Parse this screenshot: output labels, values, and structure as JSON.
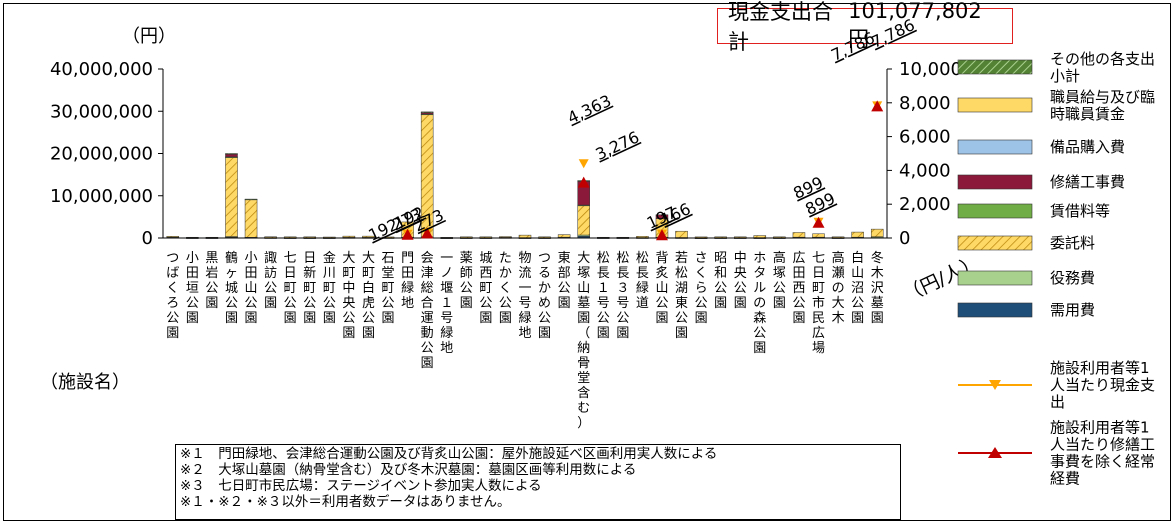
{
  "total": {
    "label": "現金支出合計",
    "value": "101,077,802 円"
  },
  "unit_left": "（円）",
  "unit_right": "（円/人）",
  "facility_label": "（施設名）",
  "notes": [
    "※１　門田緑地、会津総合運動公園及び背炙山公園：屋外施設延べ区画利用実人数による",
    "※２　大塚山墓園（納骨堂含む）及び冬木沢墓園：墓園区画等利用数による",
    "※３　七日町市民広場：ステージイベント参加実人数による",
    "※１・※２・※３以外＝利用者数データはありません。"
  ],
  "chart_data": {
    "type": "bar",
    "stacked": true,
    "y_left": {
      "min": 0,
      "max": 40000000,
      "ticks": [
        "0",
        "10,000,000",
        "20,000,000",
        "30,000,000",
        "40,000,000"
      ]
    },
    "y_right": {
      "min": 0,
      "max": 10000,
      "ticks": [
        "0",
        "2,000",
        "4,000",
        "6,000",
        "8,000",
        "10,000"
      ]
    },
    "categories": [
      "つばくろ公園",
      "小田垣公園",
      "黒岩公園",
      "鶴ヶ城公園",
      "小田山公園",
      "諏訪公園",
      "七日町公園",
      "日新町公園",
      "金川町公園",
      "大町中央公園",
      "大町白虎公園",
      "石堂町公園",
      "門田緑地",
      "会津総合運動公園",
      "一ノ堰１号緑地",
      "薬師公園",
      "城西町公園",
      "たかく公園",
      "物流一号緑地",
      "つるかめ公園",
      "東部公園",
      "大塚山墓園（納骨堂含む）",
      "松長１号公園",
      "松長３号公園",
      "松長緑道",
      "背炙山公園",
      "若松湖東公園",
      "さくら公園",
      "昭和公園",
      "中央公園",
      "ホタルの森公園",
      "高塚公園",
      "広田西公園",
      "七日町市民広場",
      "高瀬の大木",
      "白山沼公園",
      "冬木沢墓園"
    ],
    "series": [
      {
        "name": "需用費",
        "color": "#1f4e79",
        "values": [
          150000,
          60000,
          60000,
          250000,
          120000,
          80000,
          60000,
          60000,
          60000,
          100000,
          100000,
          80000,
          150000,
          200000,
          40000,
          60000,
          60000,
          100000,
          60000,
          60000,
          150000,
          400000,
          60000,
          60000,
          80000,
          150000,
          80000,
          40000,
          60000,
          60000,
          60000,
          60000,
          150000,
          150000,
          60000,
          150000,
          200000
        ]
      },
      {
        "name": "役務費",
        "color": "#a9d18e",
        "values": [
          50000,
          20000,
          20000,
          100000,
          40000,
          20000,
          20000,
          20000,
          20000,
          40000,
          40000,
          20000,
          50000,
          100000,
          20000,
          20000,
          20000,
          40000,
          20000,
          20000,
          50000,
          300000,
          20000,
          20000,
          20000,
          50000,
          30000,
          20000,
          20000,
          20000,
          20000,
          20000,
          50000,
          50000,
          20000,
          50000,
          100000
        ]
      },
      {
        "name": "委託料",
        "color": "#ffd966",
        "hatched": true,
        "values": [
          200000,
          100000,
          100000,
          18800000,
          9000000,
          200000,
          200000,
          200000,
          150000,
          300000,
          300000,
          150000,
          3600000,
          29000000,
          100000,
          200000,
          200000,
          200000,
          600000,
          200000,
          600000,
          7000000,
          100000,
          100000,
          300000,
          4400000,
          1500000,
          200000,
          200000,
          200000,
          500000,
          200000,
          1100000,
          800000,
          200000,
          1200000,
          1800000
        ]
      },
      {
        "name": "賃借料等",
        "color": "#70ad47",
        "values": [
          0,
          0,
          0,
          50000,
          0,
          0,
          0,
          0,
          0,
          0,
          0,
          0,
          0,
          50000,
          0,
          0,
          0,
          0,
          0,
          0,
          0,
          100000,
          0,
          0,
          0,
          0,
          0,
          0,
          0,
          0,
          0,
          0,
          0,
          0,
          0,
          0,
          0
        ]
      },
      {
        "name": "修繕工事費",
        "color": "#8b1a3a",
        "values": [
          0,
          0,
          0,
          700000,
          0,
          0,
          0,
          0,
          0,
          0,
          0,
          0,
          0,
          400000,
          0,
          0,
          0,
          0,
          0,
          0,
          0,
          5600000,
          0,
          0,
          0,
          900000,
          0,
          0,
          0,
          0,
          0,
          0,
          0,
          0,
          0,
          0,
          0
        ]
      },
      {
        "name": "備品購入費",
        "color": "#9dc3e6",
        "values": [
          0,
          0,
          0,
          0,
          0,
          0,
          0,
          0,
          0,
          0,
          0,
          0,
          0,
          0,
          0,
          0,
          0,
          0,
          0,
          0,
          0,
          0,
          0,
          0,
          0,
          0,
          0,
          0,
          0,
          0,
          0,
          0,
          0,
          0,
          0,
          0,
          0
        ]
      },
      {
        "name": "職員給与及び臨時職員賃金",
        "color": "#ffd966",
        "values": [
          0,
          0,
          0,
          0,
          0,
          0,
          0,
          0,
          0,
          0,
          0,
          0,
          0,
          0,
          0,
          0,
          0,
          0,
          0,
          0,
          0,
          0,
          0,
          0,
          0,
          0,
          0,
          0,
          0,
          0,
          0,
          0,
          0,
          0,
          0,
          0,
          0
        ]
      },
      {
        "name": "その他の各支出小計",
        "color": "#548235",
        "hatched": true,
        "values": [
          0,
          0,
          0,
          100000,
          50000,
          0,
          0,
          0,
          0,
          0,
          0,
          0,
          0,
          100000,
          0,
          0,
          0,
          0,
          0,
          0,
          0,
          200000,
          0,
          0,
          0,
          0,
          0,
          0,
          0,
          0,
          0,
          0,
          0,
          0,
          0,
          0,
          0
        ]
      }
    ],
    "per_user_cash": {
      "name": "施設利用者等1人当たり現金支出",
      "color": "#ffa500",
      "points": [
        {
          "cat": 12,
          "value": 192,
          "label": "192"
        },
        {
          "cat": 13,
          "value": 273,
          "label": "273"
        },
        {
          "cat": 21,
          "value": 4363,
          "label": "4,363"
        },
        {
          "cat": 25,
          "value": 197,
          "label": "197"
        },
        {
          "cat": 33,
          "value": 899,
          "label": "899"
        },
        {
          "cat": 36,
          "value": 7786,
          "label": "7,786"
        }
      ]
    },
    "per_user_recurring": {
      "name": "施設利用者等1人当たり修繕工事費を除く経常経費",
      "color": "#c00000",
      "points": [
        {
          "cat": 12,
          "value": 192,
          "label": "192"
        },
        {
          "cat": 13,
          "value": 273,
          "label": "273"
        },
        {
          "cat": 21,
          "value": 3276,
          "label": "3,276"
        },
        {
          "cat": 25,
          "value": 166,
          "label": "166"
        },
        {
          "cat": 33,
          "value": 899,
          "label": "899"
        },
        {
          "cat": 36,
          "value": 7786,
          "label": "7,786"
        }
      ]
    }
  }
}
